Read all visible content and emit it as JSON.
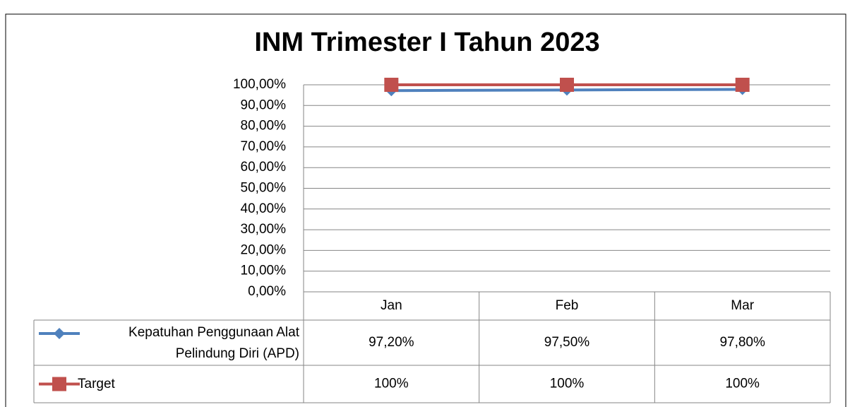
{
  "chart_data": {
    "type": "line",
    "title": "INM Trimester I Tahun 2023",
    "categories": [
      "Jan",
      "Feb",
      "Mar"
    ],
    "series": [
      {
        "name": "Kepatuhan Penggunaan Alat Pelindung Diri (APD)",
        "color": "#4f81bd",
        "marker": "diamond",
        "values": [
          97.2,
          97.5,
          97.8
        ],
        "value_labels": [
          "97,20%",
          "97,50%",
          "97,80%"
        ]
      },
      {
        "name": "Target",
        "color": "#c0504d",
        "marker": "square",
        "values": [
          100,
          100,
          100
        ],
        "value_labels": [
          "100%",
          "100%",
          "100%"
        ]
      }
    ],
    "ylim": [
      0,
      100
    ],
    "yticks": [
      {
        "value": 0,
        "label": "0,00%"
      },
      {
        "value": 10,
        "label": "10,00%"
      },
      {
        "value": 20,
        "label": "20,00%"
      },
      {
        "value": 30,
        "label": "30,00%"
      },
      {
        "value": 40,
        "label": "40,00%"
      },
      {
        "value": 50,
        "label": "50,00%"
      },
      {
        "value": 60,
        "label": "60,00%"
      },
      {
        "value": 70,
        "label": "70,00%"
      },
      {
        "value": 80,
        "label": "80,00%"
      },
      {
        "value": 90,
        "label": "90,00%"
      },
      {
        "value": 100,
        "label": "100,00%"
      }
    ],
    "grid": true
  }
}
